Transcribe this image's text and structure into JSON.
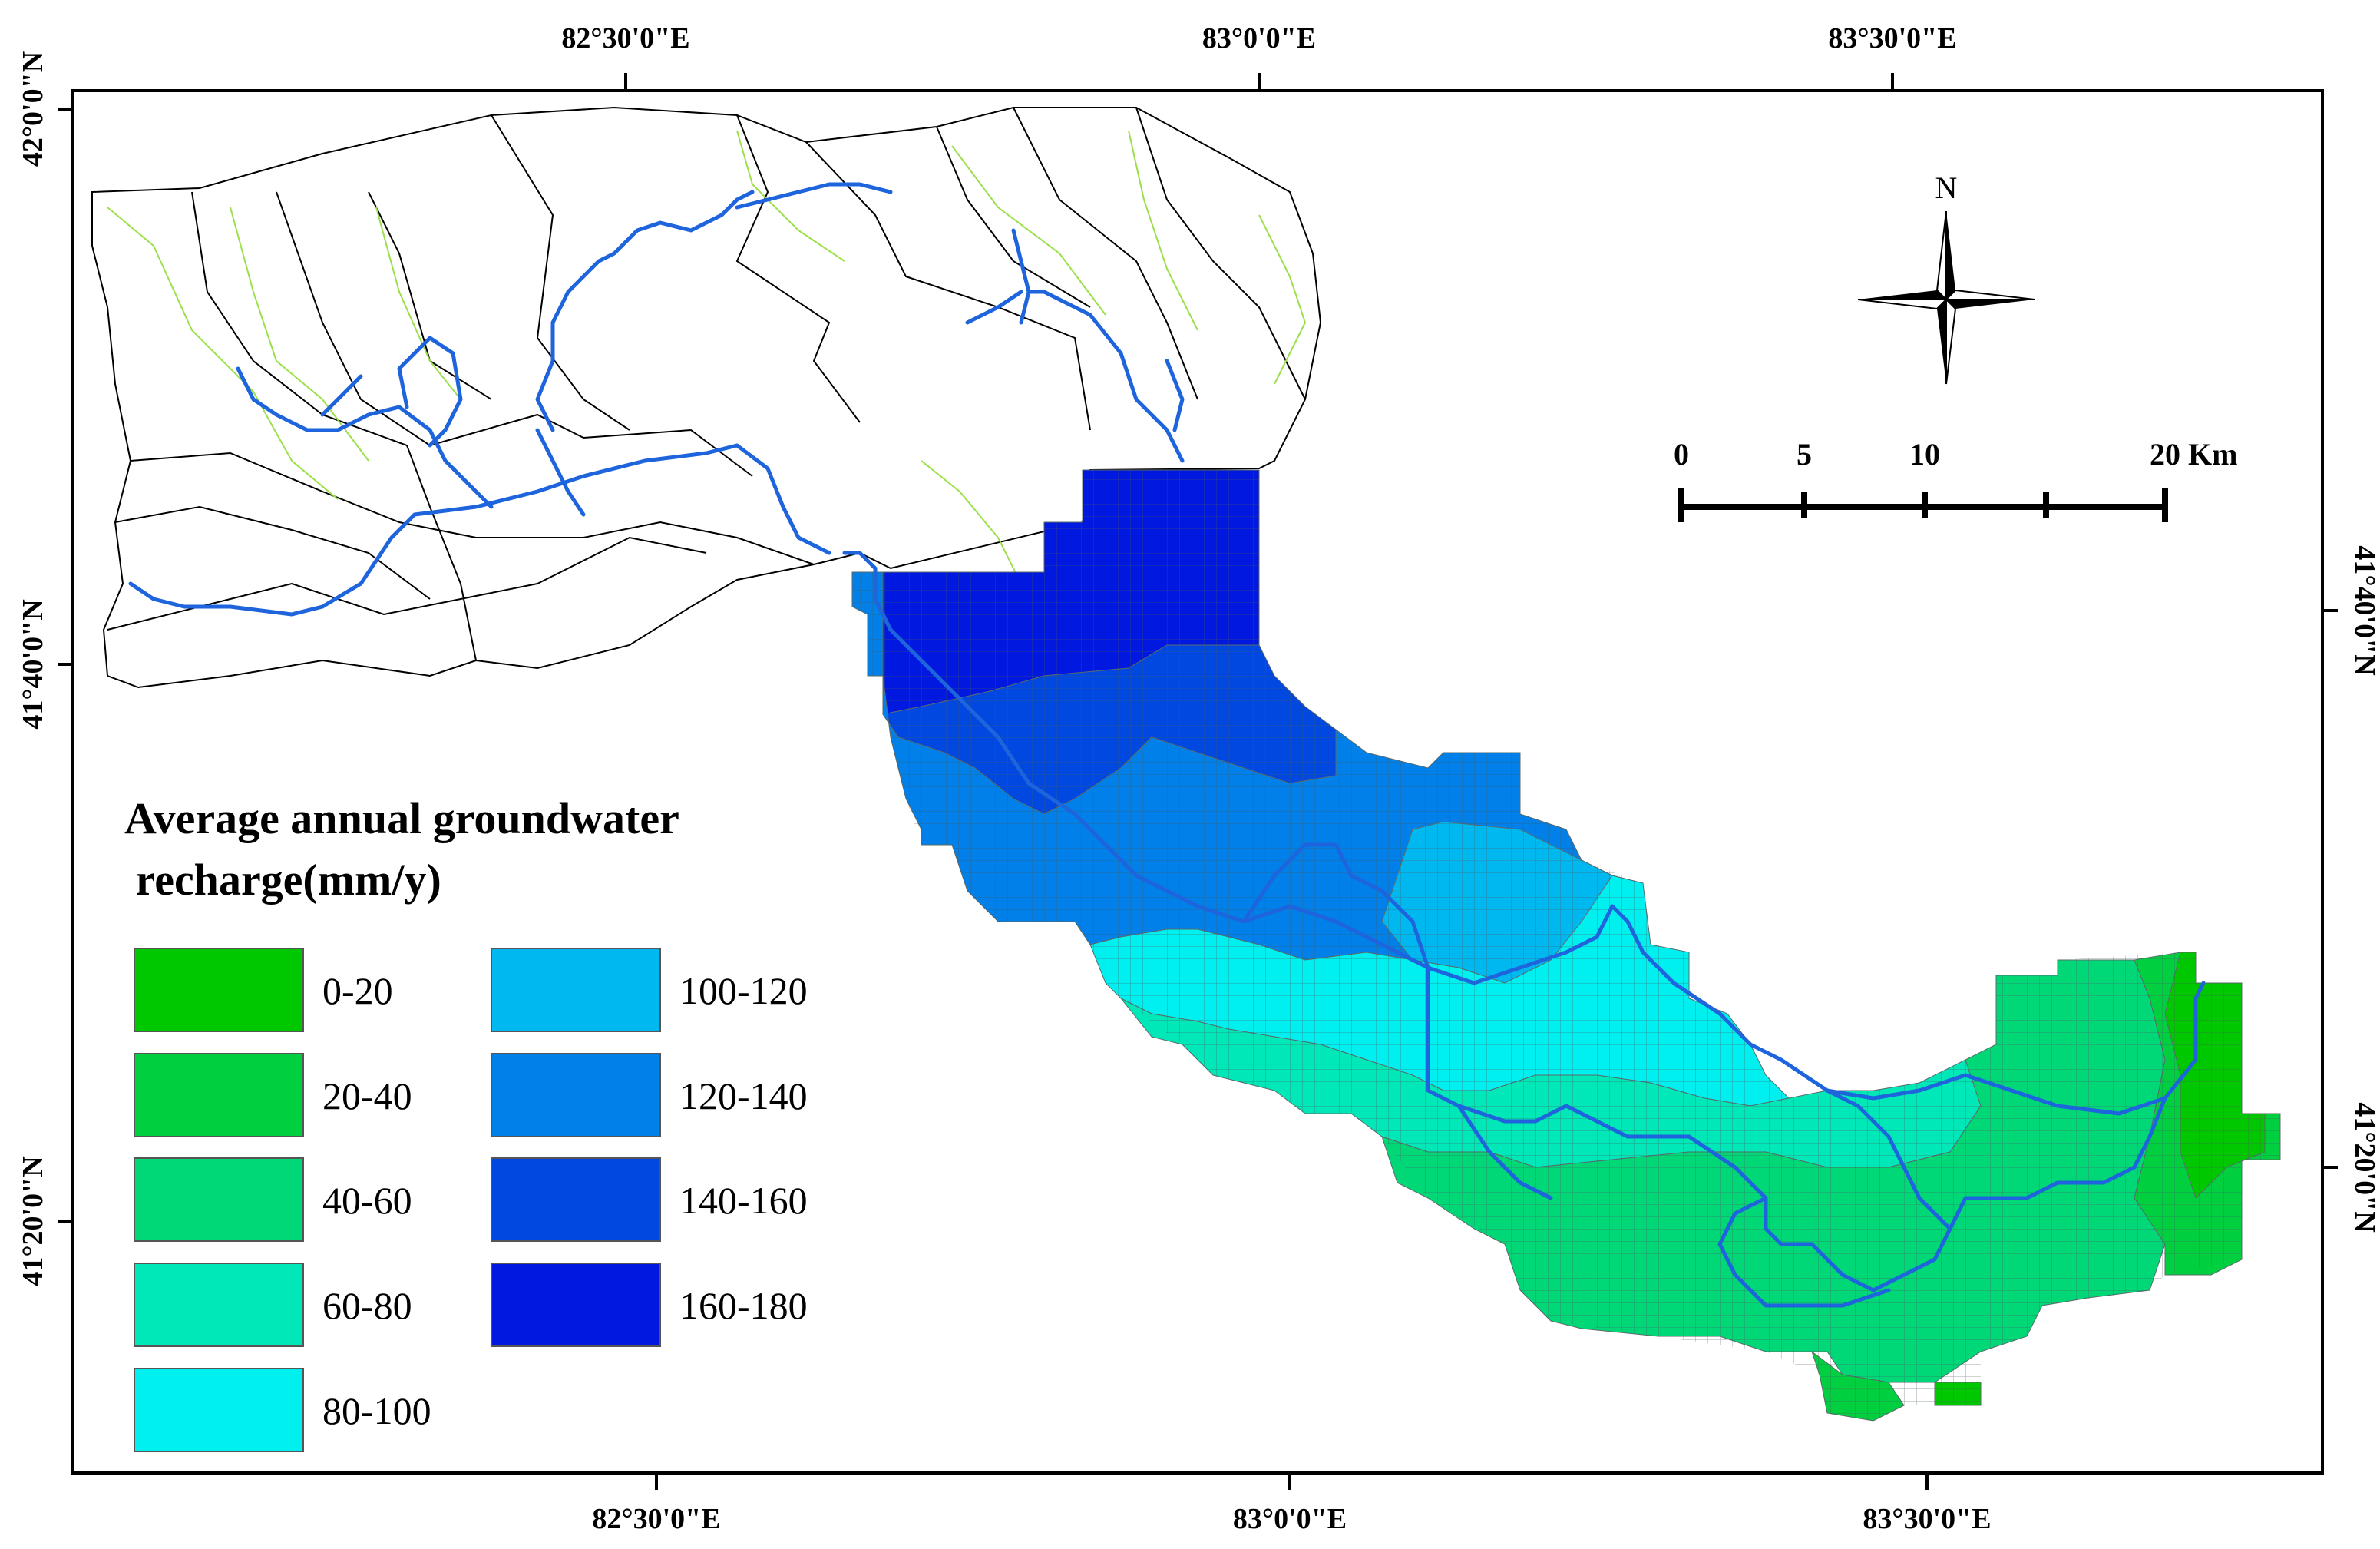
{
  "map": {
    "coordinates": {
      "top": [
        "82°30'0\"E",
        "83°0'0\"E",
        "83°30'0\"E"
      ],
      "bottom": [
        "82°30'0\"E",
        "83°0'0\"E",
        "83°30'0\"E"
      ],
      "left": [
        "42°0'0\"N",
        "41°40'0\"N",
        "41°20'0\"N"
      ],
      "right": [
        "41°40'0\"N",
        "41°20'0\"N"
      ]
    },
    "legend": {
      "title_line1": "Average annual groundwater",
      "title_line2": " recharge(mm/y)",
      "classes": [
        {
          "label": "0-20",
          "color": "#00c800"
        },
        {
          "label": "20-40",
          "color": "#00d040"
        },
        {
          "label": "40-60",
          "color": "#00d878"
        },
        {
          "label": "60-80",
          "color": "#00e8b8"
        },
        {
          "label": "80-100",
          "color": "#00f0f0"
        },
        {
          "label": "100-120",
          "color": "#00b8f0"
        },
        {
          "label": "120-140",
          "color": "#0080e8"
        },
        {
          "label": "140-160",
          "color": "#0048e0"
        },
        {
          "label": "160-180",
          "color": "#0018e0"
        }
      ]
    },
    "north_arrow": {
      "label": "N",
      "icon": "compass-rose-icon"
    },
    "scale_bar": {
      "labels": [
        "0",
        "5",
        "10",
        "20 Km"
      ]
    },
    "colors": {
      "river": "#1e64dc",
      "tributary": "#9be04a",
      "subbasin_border": "#000000",
      "grid_line": "#5a6a6a"
    }
  }
}
